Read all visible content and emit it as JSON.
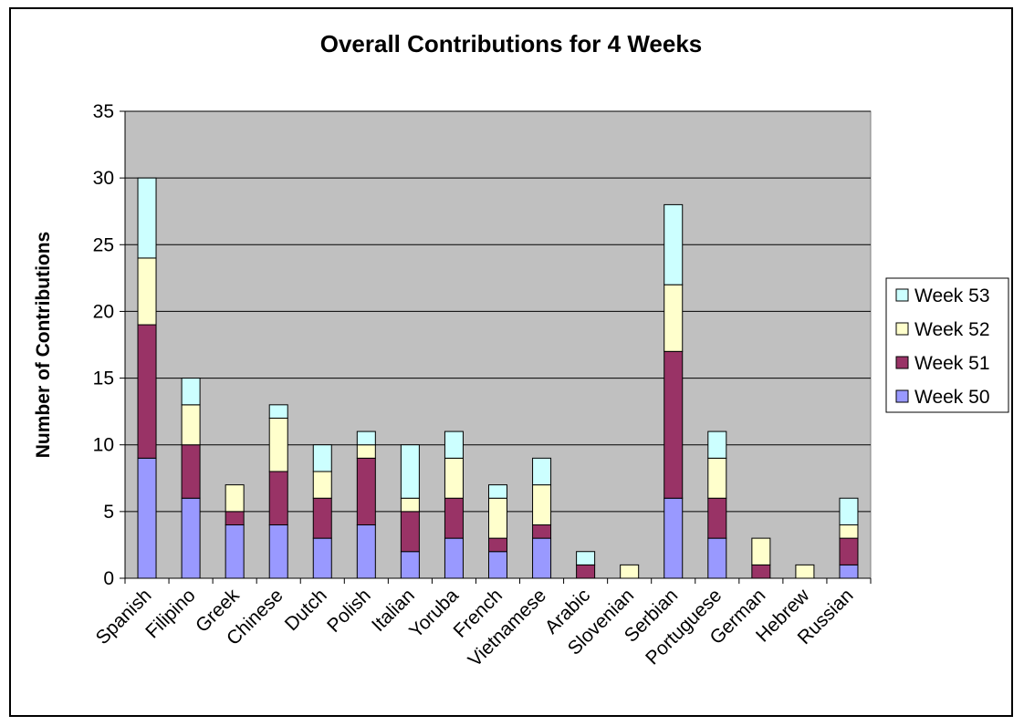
{
  "chart_data": {
    "type": "bar",
    "stacked": true,
    "title": "Overall Contributions for 4 Weeks",
    "xlabel": "",
    "ylabel": "Number of Contributions",
    "ylim": [
      0,
      35
    ],
    "yticks": [
      0,
      5,
      10,
      15,
      20,
      25,
      30,
      35
    ],
    "grid": true,
    "legend_position": "right",
    "categories": [
      "Spanish",
      "Filipino",
      "Greek",
      "Chinese",
      "Dutch",
      "Polish",
      "Italian",
      "Yoruba",
      "French",
      "Vietnamese",
      "Arabic",
      "Slovenian",
      "Serbian",
      "Portuguese",
      "German",
      "Hebrew",
      "Russian"
    ],
    "series": [
      {
        "name": "Week 50",
        "color": "#9999ff",
        "values": [
          9,
          6,
          4,
          4,
          3,
          4,
          2,
          3,
          2,
          3,
          0,
          0,
          6,
          3,
          0,
          0,
          1
        ]
      },
      {
        "name": "Week 51",
        "color": "#993366",
        "values": [
          10,
          4,
          1,
          4,
          3,
          5,
          3,
          3,
          1,
          1,
          1,
          0,
          11,
          3,
          1,
          0,
          2
        ]
      },
      {
        "name": "Week 52",
        "color": "#ffffcc",
        "values": [
          5,
          3,
          2,
          4,
          2,
          1,
          1,
          3,
          3,
          3,
          0,
          1,
          5,
          3,
          2,
          1,
          1
        ]
      },
      {
        "name": "Week 53",
        "color": "#ccffff",
        "values": [
          6,
          2,
          0,
          1,
          2,
          1,
          4,
          2,
          1,
          2,
          1,
          0,
          6,
          2,
          0,
          0,
          2
        ]
      }
    ],
    "plot_background": "#c0c0c0"
  }
}
